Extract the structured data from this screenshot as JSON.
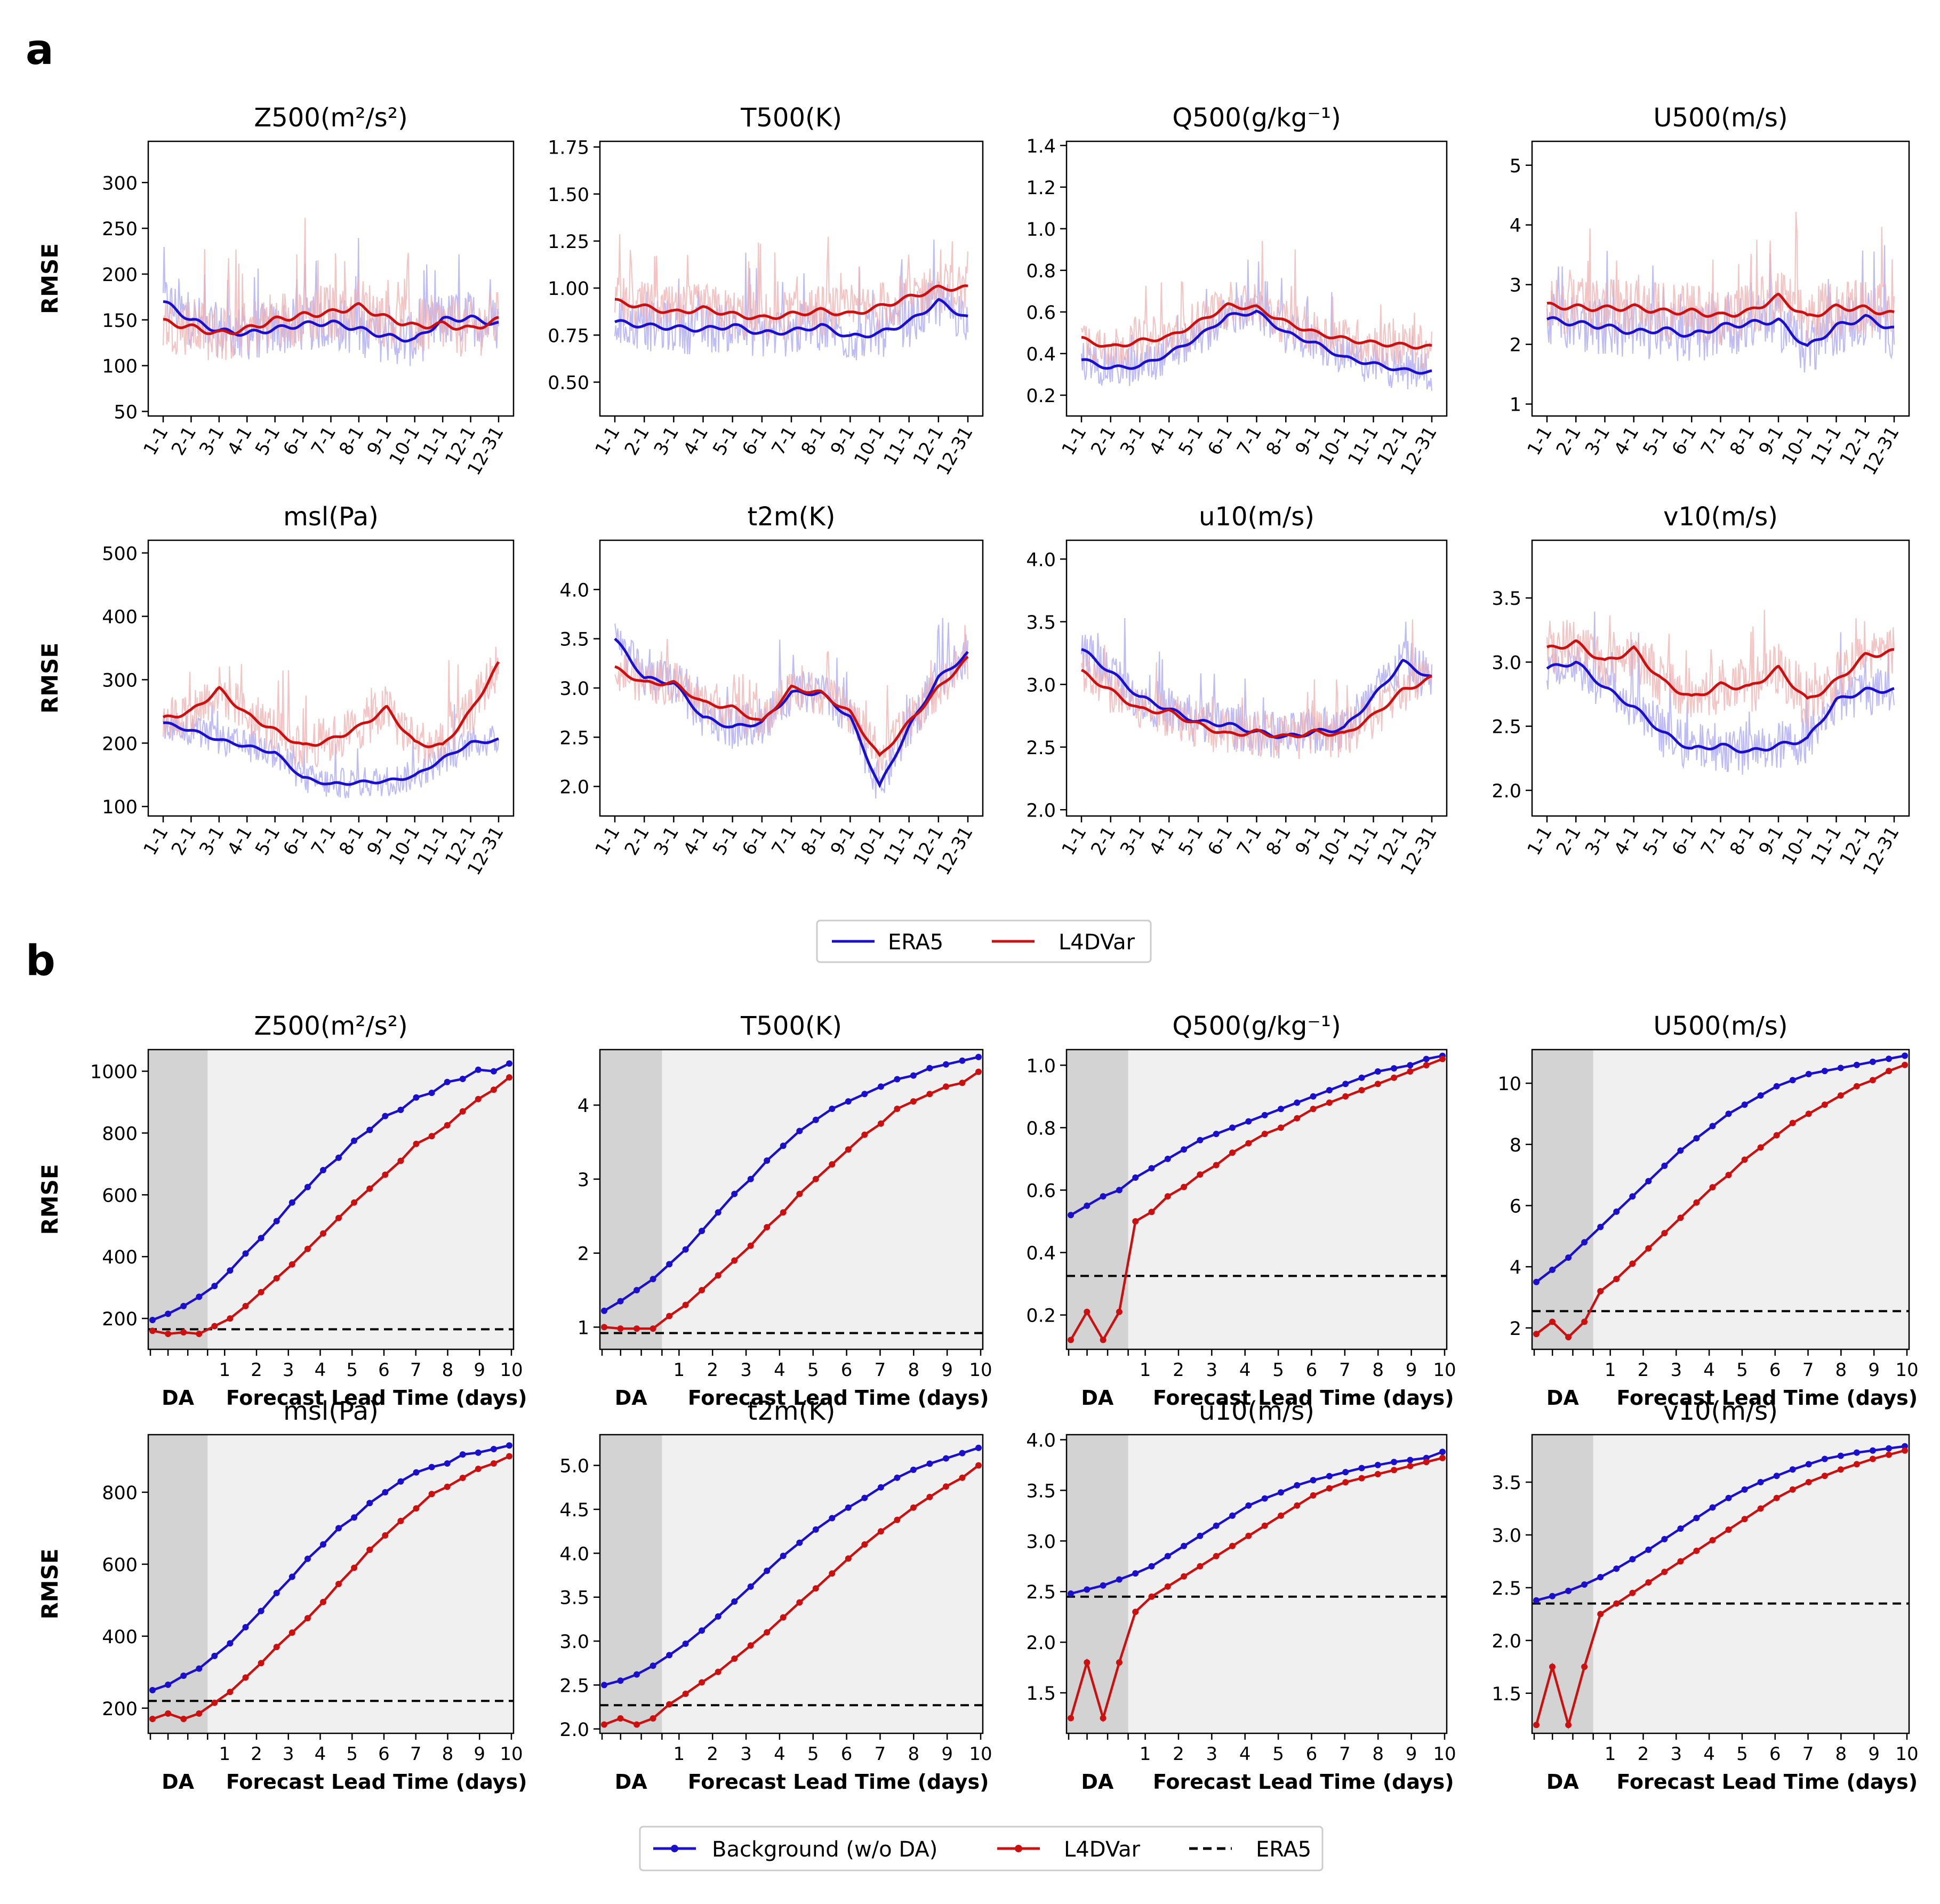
{
  "panel_labels": {
    "a": "a",
    "b": "b"
  },
  "colors": {
    "era5": "#1a0fcc",
    "l4dvar": "#cc1010",
    "era5_light": "#a9a6f2",
    "l4dvar_light": "#eeb0b0",
    "da_band": "#d3d3d3",
    "axes_bg": "#f0f0f0"
  },
  "common": {
    "ylabel": "RMSE",
    "month_ticks": [
      "1-1",
      "2-1",
      "3-1",
      "4-1",
      "5-1",
      "6-1",
      "7-1",
      "8-1",
      "9-1",
      "10-1",
      "11-1",
      "12-1",
      "12-31"
    ],
    "lead_ticks": [
      "1",
      "2",
      "3",
      "4",
      "5",
      "6",
      "7",
      "8",
      "9",
      "10"
    ],
    "da_label": "DA",
    "lead_label": "Forecast Lead Time (days)"
  },
  "legend_a": {
    "era5": "ERA5",
    "l4dvar": "L4DVar"
  },
  "legend_b": {
    "background": "Background (w/o DA)",
    "l4dvar": "L4DVar",
    "era5": "ERA5"
  },
  "chart_data": [
    {
      "panel": "a",
      "type": "line",
      "title": "Z500(m²/s²)",
      "ylim": [
        45,
        345
      ],
      "yticks": [
        50,
        100,
        150,
        200,
        250,
        300
      ],
      "series": [
        {
          "name": "ERA5",
          "smooth": [
            170,
            150,
            138,
            135,
            140,
            145,
            147,
            140,
            132,
            128,
            150,
            152,
            145
          ],
          "noise_amp": 55
        },
        {
          "name": "L4DVar",
          "smooth": [
            148,
            142,
            135,
            140,
            150,
            155,
            158,
            165,
            152,
            143,
            145,
            140,
            150
          ],
          "noise_amp": 60
        }
      ]
    },
    {
      "panel": "a",
      "type": "line",
      "title": "T500(K)",
      "ylim": [
        0.32,
        1.78
      ],
      "yticks": [
        0.5,
        0.75,
        1.0,
        1.25,
        1.5,
        1.75
      ],
      "series": [
        {
          "name": "ERA5",
          "smooth": [
            0.82,
            0.8,
            0.79,
            0.78,
            0.8,
            0.76,
            0.77,
            0.8,
            0.74,
            0.76,
            0.82,
            0.93,
            0.84
          ],
          "noise_amp": 0.25
        },
        {
          "name": "L4DVar",
          "smooth": [
            0.93,
            0.9,
            0.87,
            0.89,
            0.86,
            0.84,
            0.86,
            0.88,
            0.86,
            0.9,
            0.95,
            1.0,
            1.0
          ],
          "noise_amp": 0.25
        }
      ]
    },
    {
      "panel": "a",
      "type": "line",
      "title": "Q500(g/kg⁻¹)",
      "ylim": [
        0.1,
        1.42
      ],
      "yticks": [
        0.2,
        0.4,
        0.6,
        0.8,
        1.0,
        1.2,
        1.4
      ],
      "series": [
        {
          "name": "ERA5",
          "smooth": [
            0.37,
            0.33,
            0.34,
            0.4,
            0.48,
            0.58,
            0.6,
            0.5,
            0.45,
            0.38,
            0.35,
            0.32,
            0.31
          ],
          "noise_amp": 0.18
        },
        {
          "name": "L4DVar",
          "smooth": [
            0.47,
            0.43,
            0.46,
            0.48,
            0.55,
            0.63,
            0.62,
            0.55,
            0.5,
            0.47,
            0.45,
            0.44,
            0.43
          ],
          "noise_amp": 0.2
        }
      ]
    },
    {
      "panel": "a",
      "type": "line",
      "title": "U500(m/s)",
      "ylim": [
        0.8,
        5.4
      ],
      "yticks": [
        1,
        2,
        3,
        4,
        5
      ],
      "series": [
        {
          "name": "ERA5",
          "smooth": [
            2.42,
            2.35,
            2.3,
            2.2,
            2.25,
            2.15,
            2.3,
            2.35,
            2.4,
            1.95,
            2.3,
            2.45,
            2.25
          ],
          "noise_amp": 0.9
        },
        {
          "name": "L4DVar",
          "smooth": [
            2.65,
            2.62,
            2.6,
            2.62,
            2.55,
            2.55,
            2.48,
            2.55,
            2.8,
            2.45,
            2.62,
            2.6,
            2.5
          ],
          "noise_amp": 0.9
        }
      ]
    },
    {
      "panel": "a",
      "type": "line",
      "title": "msl(Pa)",
      "ylim": [
        85,
        520
      ],
      "yticks": [
        100,
        200,
        300,
        400,
        500
      ],
      "series": [
        {
          "name": "ERA5",
          "smooth": [
            232,
            220,
            205,
            195,
            185,
            145,
            135,
            138,
            140,
            148,
            175,
            200,
            205
          ],
          "noise_amp": 45
        },
        {
          "name": "L4DVar",
          "smooth": [
            238,
            250,
            285,
            245,
            220,
            195,
            205,
            225,
            255,
            200,
            195,
            250,
            325
          ],
          "noise_amp": 70
        }
      ]
    },
    {
      "panel": "a",
      "type": "line",
      "title": "t2m(K)",
      "ylim": [
        1.7,
        4.5
      ],
      "yticks": [
        2.0,
        2.5,
        3.0,
        3.5,
        4.0
      ],
      "series": [
        {
          "name": "ERA5",
          "smooth": [
            3.5,
            3.1,
            3.05,
            2.7,
            2.6,
            2.65,
            2.95,
            2.95,
            2.7,
            2.0,
            2.6,
            3.1,
            3.35
          ],
          "noise_amp": 0.4
        },
        {
          "name": "L4DVar",
          "smooth": [
            3.2,
            3.05,
            3.05,
            2.85,
            2.8,
            2.65,
            3.0,
            2.95,
            2.75,
            2.3,
            2.65,
            3.0,
            3.3
          ],
          "noise_amp": 0.4
        }
      ]
    },
    {
      "panel": "a",
      "type": "line",
      "title": "u10(m/s)",
      "ylim": [
        1.95,
        4.15
      ],
      "yticks": [
        2.0,
        2.5,
        3.0,
        3.5,
        4.0
      ],
      "series": [
        {
          "name": "ERA5",
          "smooth": [
            3.28,
            3.1,
            2.9,
            2.8,
            2.7,
            2.68,
            2.62,
            2.58,
            2.62,
            2.65,
            2.9,
            3.18,
            3.05
          ],
          "noise_amp": 0.35
        },
        {
          "name": "L4DVar",
          "smooth": [
            3.1,
            2.95,
            2.8,
            2.78,
            2.68,
            2.6,
            2.62,
            2.58,
            2.62,
            2.6,
            2.75,
            2.95,
            3.05
          ],
          "noise_amp": 0.35
        }
      ]
    },
    {
      "panel": "a",
      "type": "line",
      "title": "v10(m/s)",
      "ylim": [
        1.8,
        3.95
      ],
      "yticks": [
        2.0,
        2.5,
        3.0,
        3.5
      ],
      "series": [
        {
          "name": "ERA5",
          "smooth": [
            2.95,
            3.0,
            2.8,
            2.65,
            2.45,
            2.32,
            2.35,
            2.3,
            2.35,
            2.4,
            2.7,
            2.78,
            2.78
          ],
          "noise_amp": 0.35
        },
        {
          "name": "L4DVar",
          "smooth": [
            3.1,
            3.15,
            3.0,
            3.1,
            2.85,
            2.72,
            2.82,
            2.8,
            2.95,
            2.7,
            2.85,
            3.05,
            3.08
          ],
          "noise_amp": 0.4
        }
      ]
    },
    {
      "panel": "b",
      "type": "line",
      "title": "Z500(m²/s²)",
      "ylim": [
        100,
        1070
      ],
      "yticks": [
        200,
        400,
        600,
        800,
        1000
      ],
      "era5_ref": 165,
      "series": [
        {
          "name": "Background (w/o DA)",
          "values": [
            195,
            215,
            240,
            270,
            305,
            355,
            410,
            460,
            515,
            575,
            625,
            680,
            720,
            775,
            810,
            855,
            875,
            915,
            930,
            965,
            975,
            1005,
            1000,
            1025
          ]
        },
        {
          "name": "L4DVar",
          "values": [
            160,
            150,
            155,
            150,
            175,
            200,
            240,
            285,
            330,
            375,
            425,
            475,
            525,
            575,
            620,
            665,
            710,
            765,
            790,
            825,
            870,
            910,
            940,
            980
          ]
        }
      ]
    },
    {
      "panel": "b",
      "type": "line",
      "title": "T500(K)",
      "ylim": [
        0.7,
        4.75
      ],
      "yticks": [
        1,
        2,
        3,
        4
      ],
      "era5_ref": 0.92,
      "series": [
        {
          "name": "Background (w/o DA)",
          "values": [
            1.22,
            1.35,
            1.5,
            1.65,
            1.85,
            2.05,
            2.3,
            2.55,
            2.8,
            3.0,
            3.25,
            3.45,
            3.65,
            3.8,
            3.95,
            4.05,
            4.15,
            4.25,
            4.35,
            4.4,
            4.5,
            4.55,
            4.6,
            4.65
          ]
        },
        {
          "name": "L4DVar",
          "values": [
            1.0,
            0.98,
            0.98,
            0.98,
            1.15,
            1.3,
            1.5,
            1.7,
            1.9,
            2.1,
            2.35,
            2.55,
            2.8,
            3.0,
            3.2,
            3.4,
            3.6,
            3.75,
            3.95,
            4.05,
            4.15,
            4.25,
            4.3,
            4.45
          ]
        }
      ]
    },
    {
      "panel": "b",
      "type": "line",
      "title": "Q500(g/kg⁻¹)",
      "ylim": [
        0.09,
        1.05
      ],
      "yticks": [
        0.2,
        0.4,
        0.6,
        0.8,
        1.0
      ],
      "era5_ref": 0.325,
      "series": [
        {
          "name": "Background (w/o DA)",
          "values": [
            0.52,
            0.55,
            0.58,
            0.6,
            0.64,
            0.67,
            0.7,
            0.73,
            0.76,
            0.78,
            0.8,
            0.82,
            0.84,
            0.86,
            0.88,
            0.9,
            0.92,
            0.94,
            0.96,
            0.98,
            0.99,
            1.0,
            1.02,
            1.03
          ]
        },
        {
          "name": "L4DVar",
          "values": [
            0.12,
            0.21,
            0.12,
            0.21,
            0.5,
            0.53,
            0.58,
            0.61,
            0.65,
            0.68,
            0.72,
            0.75,
            0.78,
            0.8,
            0.83,
            0.86,
            0.88,
            0.9,
            0.92,
            0.94,
            0.96,
            0.98,
            1.0,
            1.02
          ]
        }
      ]
    },
    {
      "panel": "b",
      "type": "line",
      "title": "U500(m/s)",
      "ylim": [
        1.3,
        11.1
      ],
      "yticks": [
        2,
        4,
        6,
        8,
        10
      ],
      "era5_ref": 2.55,
      "series": [
        {
          "name": "Background (w/o DA)",
          "values": [
            3.5,
            3.9,
            4.3,
            4.8,
            5.3,
            5.8,
            6.3,
            6.8,
            7.3,
            7.8,
            8.2,
            8.6,
            9.0,
            9.3,
            9.6,
            9.9,
            10.1,
            10.3,
            10.4,
            10.5,
            10.6,
            10.7,
            10.8,
            10.9
          ]
        },
        {
          "name": "L4DVar",
          "values": [
            1.8,
            2.2,
            1.7,
            2.2,
            3.2,
            3.6,
            4.1,
            4.6,
            5.1,
            5.6,
            6.1,
            6.6,
            7.0,
            7.5,
            7.9,
            8.3,
            8.7,
            9.0,
            9.3,
            9.6,
            9.9,
            10.1,
            10.4,
            10.6
          ]
        }
      ]
    },
    {
      "panel": "b",
      "type": "line",
      "title": "msl(Pa)",
      "ylim": [
        130,
        960
      ],
      "yticks": [
        200,
        400,
        600,
        800
      ],
      "era5_ref": 220,
      "series": [
        {
          "name": "Background (w/o DA)",
          "values": [
            250,
            265,
            290,
            310,
            345,
            380,
            425,
            470,
            520,
            565,
            615,
            655,
            700,
            730,
            770,
            800,
            830,
            855,
            870,
            880,
            905,
            910,
            920,
            930
          ]
        },
        {
          "name": "L4DVar",
          "values": [
            170,
            185,
            170,
            185,
            215,
            245,
            285,
            325,
            370,
            410,
            450,
            495,
            545,
            590,
            640,
            680,
            720,
            755,
            795,
            815,
            840,
            865,
            880,
            900
          ]
        }
      ]
    },
    {
      "panel": "b",
      "type": "line",
      "title": "t2m(K)",
      "ylim": [
        1.95,
        5.35
      ],
      "yticks": [
        2.0,
        2.5,
        3.0,
        3.5,
        4.0,
        4.5,
        5.0
      ],
      "era5_ref": 2.27,
      "series": [
        {
          "name": "Background (w/o DA)",
          "values": [
            2.5,
            2.55,
            2.62,
            2.72,
            2.84,
            2.97,
            3.12,
            3.28,
            3.45,
            3.62,
            3.8,
            3.97,
            4.12,
            4.27,
            4.4,
            4.52,
            4.63,
            4.75,
            4.86,
            4.95,
            5.02,
            5.08,
            5.14,
            5.2
          ]
        },
        {
          "name": "L4DVar",
          "values": [
            2.05,
            2.12,
            2.05,
            2.12,
            2.28,
            2.4,
            2.53,
            2.65,
            2.8,
            2.95,
            3.1,
            3.27,
            3.44,
            3.6,
            3.77,
            3.94,
            4.1,
            4.25,
            4.38,
            4.52,
            4.64,
            4.76,
            4.86,
            5.0
          ]
        }
      ]
    },
    {
      "panel": "b",
      "type": "line",
      "title": "u10(m/s)",
      "ylim": [
        1.1,
        4.05
      ],
      "yticks": [
        1.5,
        2.0,
        2.5,
        3.0,
        3.5,
        4.0
      ],
      "era5_ref": 2.45,
      "series": [
        {
          "name": "Background (w/o DA)",
          "values": [
            2.48,
            2.52,
            2.56,
            2.62,
            2.68,
            2.75,
            2.85,
            2.95,
            3.05,
            3.15,
            3.25,
            3.35,
            3.42,
            3.48,
            3.55,
            3.6,
            3.64,
            3.68,
            3.72,
            3.75,
            3.78,
            3.8,
            3.82,
            3.88
          ]
        },
        {
          "name": "L4DVar",
          "values": [
            1.25,
            1.8,
            1.25,
            1.8,
            2.3,
            2.45,
            2.55,
            2.65,
            2.75,
            2.85,
            2.95,
            3.05,
            3.15,
            3.25,
            3.35,
            3.45,
            3.52,
            3.58,
            3.62,
            3.66,
            3.7,
            3.74,
            3.78,
            3.82
          ]
        }
      ]
    },
    {
      "panel": "b",
      "type": "line",
      "title": "v10(m/s)",
      "ylim": [
        1.12,
        3.95
      ],
      "yticks": [
        1.5,
        2.0,
        2.5,
        3.0,
        3.5
      ],
      "era5_ref": 2.35,
      "series": [
        {
          "name": "Background (w/o DA)",
          "values": [
            2.38,
            2.42,
            2.47,
            2.53,
            2.6,
            2.68,
            2.77,
            2.86,
            2.96,
            3.06,
            3.16,
            3.26,
            3.35,
            3.43,
            3.5,
            3.56,
            3.62,
            3.67,
            3.72,
            3.75,
            3.78,
            3.8,
            3.82,
            3.84
          ]
        },
        {
          "name": "L4DVar",
          "values": [
            1.2,
            1.75,
            1.2,
            1.75,
            2.25,
            2.35,
            2.45,
            2.55,
            2.65,
            2.75,
            2.85,
            2.95,
            3.05,
            3.15,
            3.25,
            3.35,
            3.43,
            3.5,
            3.56,
            3.62,
            3.67,
            3.72,
            3.76,
            3.8
          ]
        }
      ]
    }
  ]
}
